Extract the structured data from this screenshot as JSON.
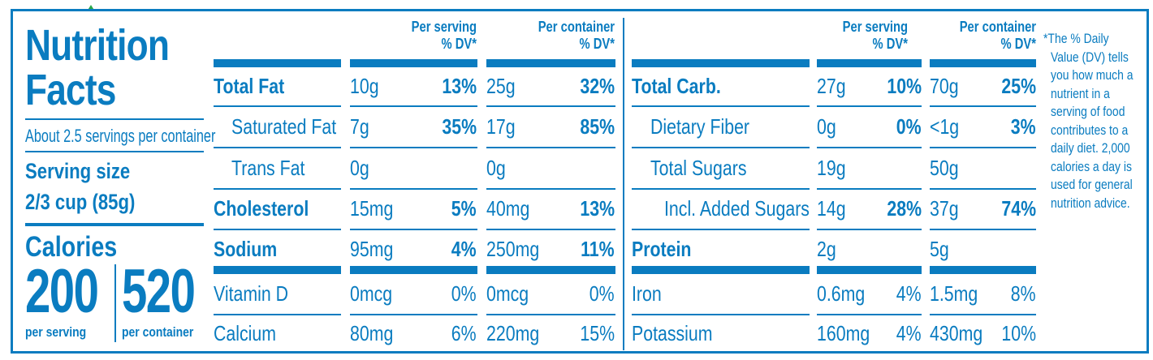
{
  "colors": {
    "label_blue": "#0a7cc0",
    "background": "#ffffff",
    "mark_green": "#2aa84a"
  },
  "title": {
    "line1": "Nutrition",
    "line2": "Facts"
  },
  "servings_per_container": "About 2.5 servings per container",
  "serving_size": {
    "label": "Serving size",
    "value": "2/3 cup (85g)"
  },
  "calories": {
    "label": "Calories",
    "per_serving": "200",
    "per_serving_label": "per serving",
    "per_container": "520",
    "per_container_label": "per container"
  },
  "column_headers": {
    "per_serving": [
      "Per serving",
      "% DV*"
    ],
    "per_container": [
      "Per container",
      "% DV*"
    ]
  },
  "left_rows": [
    {
      "name": "Total Fat",
      "serv_amt": "10g",
      "serv_dv": "13%",
      "cont_amt": "25g",
      "cont_dv": "32%"
    },
    {
      "name": "Saturated Fat",
      "serv_amt": "7g",
      "serv_dv": "35%",
      "cont_amt": "17g",
      "cont_dv": "85%"
    },
    {
      "name": "Trans Fat",
      "serv_amt": "0g",
      "serv_dv": "",
      "cont_amt": "0g",
      "cont_dv": ""
    },
    {
      "name": "Cholesterol",
      "serv_amt": "15mg",
      "serv_dv": "5%",
      "cont_amt": "40mg",
      "cont_dv": "13%"
    },
    {
      "name": "Sodium",
      "serv_amt": "95mg",
      "serv_dv": "4%",
      "cont_amt": "250mg",
      "cont_dv": "11%"
    },
    {
      "name": "Vitamin D",
      "serv_amt": "0mcg",
      "serv_dv": "0%",
      "cont_amt": "0mcg",
      "cont_dv": "0%"
    },
    {
      "name": "Calcium",
      "serv_amt": "80mg",
      "serv_dv": "6%",
      "cont_amt": "220mg",
      "cont_dv": "15%"
    }
  ],
  "right_rows": [
    {
      "name": "Total Carb.",
      "serv_amt": "27g",
      "serv_dv": "10%",
      "cont_amt": "70g",
      "cont_dv": "25%"
    },
    {
      "name": "Dietary Fiber",
      "serv_amt": "0g",
      "serv_dv": "0%",
      "cont_amt": "<1g",
      "cont_dv": "3%"
    },
    {
      "name": "Total Sugars",
      "serv_amt": "19g",
      "serv_dv": "",
      "cont_amt": "50g",
      "cont_dv": ""
    },
    {
      "name": "Incl. Added Sugars",
      "serv_amt": "14g",
      "serv_dv": "28%",
      "cont_amt": "37g",
      "cont_dv": "74%"
    },
    {
      "name": "Protein",
      "serv_amt": "2g",
      "serv_dv": "",
      "cont_amt": "5g",
      "cont_dv": ""
    },
    {
      "name": "Iron",
      "serv_amt": "0.6mg",
      "serv_dv": "4%",
      "cont_amt": "1.5mg",
      "cont_dv": "8%"
    },
    {
      "name": "Potassium",
      "serv_amt": "160mg",
      "serv_dv": "4%",
      "cont_amt": "430mg",
      "cont_dv": "10%"
    }
  ],
  "footnote_lines": [
    "*The % Daily",
    "Value (DV) tells",
    "you how much a",
    "nutrient in a",
    "serving of food",
    "contributes to a",
    "daily diet. 2,000",
    "calories a day is",
    "used for general",
    "nutrition advice."
  ]
}
